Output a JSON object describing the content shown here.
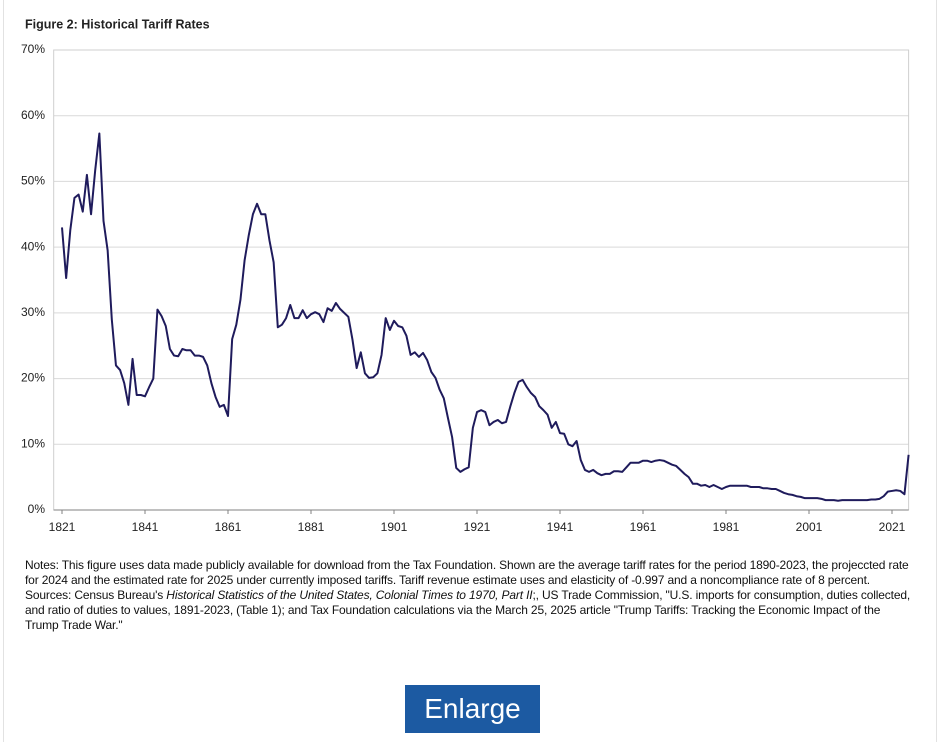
{
  "chart_data": {
    "type": "line",
    "title": "Figure 2: Historical Tariff Rates",
    "color": "#1f1b5c",
    "grid": true,
    "xlim": [
      1819,
      2025
    ],
    "xticks": [
      1821,
      1841,
      1861,
      1881,
      1901,
      1921,
      1941,
      1961,
      1981,
      2001,
      2021
    ],
    "ylim": [
      0,
      70
    ],
    "yticks": [
      {
        "value": 0,
        "label": "0%"
      },
      {
        "value": 10,
        "label": "10%"
      },
      {
        "value": 20,
        "label": "20%"
      },
      {
        "value": 30,
        "label": "30%"
      },
      {
        "value": 40,
        "label": "40%"
      },
      {
        "value": 50,
        "label": "50%"
      },
      {
        "value": 60,
        "label": "60%"
      },
      {
        "value": 70,
        "label": "70%"
      }
    ],
    "x": [
      1821,
      1822,
      1823,
      1824,
      1825,
      1826,
      1827,
      1828,
      1829,
      1830,
      1831,
      1832,
      1833,
      1834,
      1835,
      1836,
      1837,
      1838,
      1839,
      1840,
      1841,
      1842,
      1843,
      1844,
      1845,
      1846,
      1847,
      1848,
      1849,
      1850,
      1851,
      1852,
      1853,
      1854,
      1855,
      1856,
      1857,
      1858,
      1859,
      1860,
      1861,
      1862,
      1863,
      1864,
      1865,
      1866,
      1867,
      1868,
      1869,
      1870,
      1871,
      1872,
      1873,
      1874,
      1875,
      1876,
      1877,
      1878,
      1879,
      1880,
      1881,
      1882,
      1883,
      1884,
      1885,
      1886,
      1887,
      1888,
      1889,
      1890,
      1891,
      1892,
      1893,
      1894,
      1895,
      1896,
      1897,
      1898,
      1899,
      1900,
      1901,
      1902,
      1903,
      1904,
      1905,
      1906,
      1907,
      1908,
      1909,
      1910,
      1911,
      1912,
      1913,
      1914,
      1915,
      1916,
      1917,
      1918,
      1919,
      1920,
      1921,
      1922,
      1923,
      1924,
      1925,
      1926,
      1927,
      1928,
      1929,
      1930,
      1931,
      1932,
      1933,
      1934,
      1935,
      1936,
      1937,
      1938,
      1939,
      1940,
      1941,
      1942,
      1943,
      1944,
      1945,
      1946,
      1947,
      1948,
      1949,
      1950,
      1951,
      1952,
      1953,
      1954,
      1955,
      1956,
      1957,
      1958,
      1959,
      1960,
      1961,
      1962,
      1963,
      1964,
      1965,
      1966,
      1967,
      1968,
      1969,
      1970,
      1971,
      1972,
      1973,
      1974,
      1975,
      1976,
      1977,
      1978,
      1979,
      1980,
      1981,
      1982,
      1983,
      1984,
      1985,
      1986,
      1987,
      1988,
      1989,
      1990,
      1991,
      1992,
      1993,
      1994,
      1995,
      1996,
      1997,
      1998,
      1999,
      2000,
      2001,
      2002,
      2003,
      2004,
      2005,
      2006,
      2007,
      2008,
      2009,
      2010,
      2011,
      2012,
      2013,
      2014,
      2015,
      2016,
      2017,
      2018,
      2019,
      2020,
      2021,
      2022,
      2023,
      2024,
      2025
    ],
    "values": [
      43,
      35.3,
      42.6,
      47.5,
      48,
      45.4,
      51,
      45,
      51.7,
      57.3,
      44,
      39.5,
      29,
      22,
      21.3,
      19.3,
      16,
      23,
      17.5,
      17.5,
      17.3,
      18.7,
      20,
      30.5,
      29.5,
      28,
      24.5,
      23.5,
      23.4,
      24.5,
      24.3,
      24.3,
      23.5,
      23.5,
      23.3,
      22,
      19.3,
      17.2,
      15.7,
      16,
      14.3,
      26,
      28.2,
      32,
      38,
      41.8,
      45,
      46.6,
      45,
      45,
      41,
      37.7,
      27.8,
      28.2,
      29.2,
      31.2,
      29.2,
      29.2,
      30.4,
      29.2,
      29.8,
      30.1,
      29.8,
      28.6,
      30.7,
      30.3,
      31.5,
      30.6,
      30,
      29.4,
      25.9,
      21.6,
      24,
      20.8,
      20.1,
      20.2,
      20.8,
      23.6,
      29.2,
      27.4,
      28.8,
      28,
      27.8,
      26.5,
      23.6,
      24,
      23.3,
      23.9,
      22.8,
      21,
      20.1,
      18.3,
      17,
      14,
      11.1,
      6.4,
      5.8,
      6.2,
      6.5,
      12.5,
      14.9,
      15.2,
      14.9,
      12.9,
      13.4,
      13.7,
      13.2,
      13.4,
      15.7,
      17.8,
      19.5,
      19.8,
      18.7,
      17.8,
      17.2,
      15.8,
      15.2,
      14.5,
      12.5,
      13.4,
      11.7,
      11.6,
      10,
      9.7,
      10.5,
      7.6,
      6.1,
      5.8,
      6.1,
      5.6,
      5.3,
      5.5,
      5.5,
      5.9,
      5.9,
      5.8,
      6.5,
      7.2,
      7.2,
      7.2,
      7.5,
      7.5,
      7.3,
      7.5,
      7.6,
      7.5,
      7.2,
      6.9,
      6.7,
      6.1,
      5.5,
      5,
      4,
      4,
      3.7,
      3.8,
      3.5,
      3.8,
      3.5,
      3.2,
      3.5,
      3.7,
      3.7,
      3.7,
      3.7,
      3.7,
      3.5,
      3.5,
      3.5,
      3.3,
      3.3,
      3.2,
      3.2,
      2.9,
      2.6,
      2.4,
      2.3,
      2.1,
      2,
      1.8,
      1.8,
      1.8,
      1.8,
      1.7,
      1.5,
      1.5,
      1.5,
      1.4,
      1.5,
      1.5,
      1.5,
      1.5,
      1.5,
      1.5,
      1.5,
      1.6,
      1.6,
      1.7,
      2.1,
      2.8,
      2.9,
      3,
      2.9,
      2.4,
      8.4
    ]
  },
  "notes": "Notes: This figure uses data made publicly available for download from the Tax Foundation. Shown are the average tariff rates for the period 1890-2023,  the projeccted rate for 2024  and the estimated rate for 2025  under currently imposed tariffs. Tariff revenue estimate uses and elasticity of -0.997 and a noncompliance rate of 8 percent.",
  "sources": [
    "Sources: Census Bureau's ",
    "Historical Statistics of the United States, Colonial Times to 1970,  Part II",
    ";, US Trade Commission, \"U.S. imports for consumption, duties collected, and ratio of duties to values, 1891-2023,  (Table 1); and Tax Foundation calculations via the March 25, 2025  article \"Trump Tariffs: Tracking the Economic Impact of the Trump Trade War.\""
  ],
  "button": "Enlarge"
}
